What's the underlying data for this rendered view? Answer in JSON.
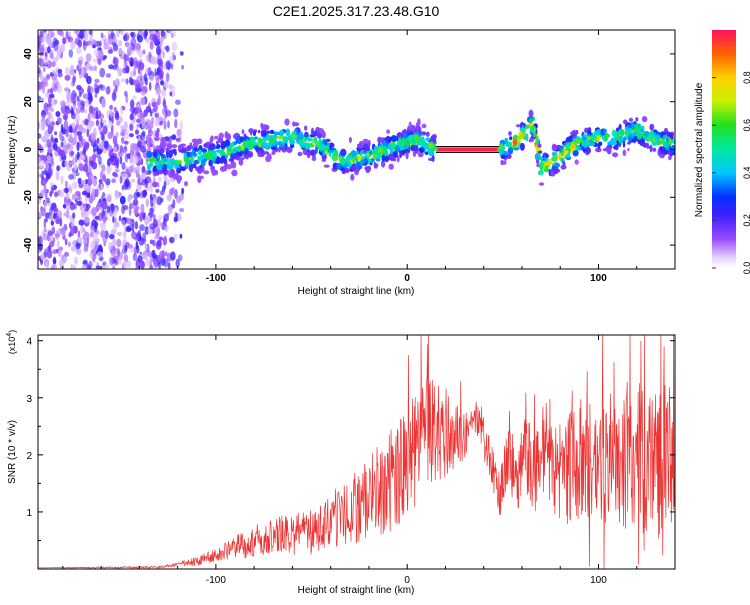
{
  "title": "C2E1.2025.317.23.48.G10",
  "chart_data": [
    {
      "type": "heatmap",
      "name": "spectrogram",
      "xlabel": "Height of straight line (km)",
      "ylabel": "Frequency (Hz)",
      "xlim": [
        -193,
        140
      ],
      "ylim": [
        -50,
        50
      ],
      "xticks": [
        -100,
        0,
        100
      ],
      "yticks": [
        -40,
        -20,
        0,
        20,
        40
      ],
      "colorbar": {
        "label": "Normalized spectral amplitude",
        "range": [
          0,
          1
        ],
        "ticks": [
          0.0,
          0.2,
          0.4,
          0.6,
          0.8
        ]
      },
      "ridge": [
        {
          "x": -120,
          "y": -5
        },
        {
          "x": -100,
          "y": -2
        },
        {
          "x": -80,
          "y": 3
        },
        {
          "x": -60,
          "y": 5
        },
        {
          "x": -45,
          "y": 2
        },
        {
          "x": -35,
          "y": -5
        },
        {
          "x": -20,
          "y": -3
        },
        {
          "x": -5,
          "y": 2
        },
        {
          "x": 5,
          "y": 4
        },
        {
          "x": 15,
          "y": 0
        },
        {
          "x": 48,
          "y": 0
        },
        {
          "x": 55,
          "y": 2
        },
        {
          "x": 62,
          "y": 7
        },
        {
          "x": 66,
          "y": 11
        },
        {
          "x": 70,
          "y": -8
        },
        {
          "x": 78,
          "y": -4
        },
        {
          "x": 90,
          "y": 3
        },
        {
          "x": 100,
          "y": 5
        },
        {
          "x": 110,
          "y": 5
        },
        {
          "x": 120,
          "y": 8
        },
        {
          "x": 130,
          "y": 4
        },
        {
          "x": 140,
          "y": 2
        }
      ],
      "tone_segment": {
        "x": [
          15,
          48
        ],
        "y": 0
      }
    },
    {
      "type": "line",
      "name": "snr",
      "xlabel": "Height of straight line (km)",
      "ylabel": "SNR (10 * v/v)",
      "yscale_label": "(x10",
      "yscale_exp": "4",
      "yscale_close": ")",
      "xlim": [
        -193,
        140
      ],
      "ylim": [
        0,
        4.1
      ],
      "xticks": [
        -100,
        0,
        100
      ],
      "yticks": [
        1,
        2,
        3,
        4
      ],
      "color": "#ee3333",
      "envelope": [
        {
          "x": -193,
          "y": 0.02
        },
        {
          "x": -130,
          "y": 0.03
        },
        {
          "x": -110,
          "y": 0.12
        },
        {
          "x": -90,
          "y": 0.35
        },
        {
          "x": -70,
          "y": 0.55
        },
        {
          "x": -50,
          "y": 0.6
        },
        {
          "x": -30,
          "y": 0.95
        },
        {
          "x": -10,
          "y": 1.4
        },
        {
          "x": 0,
          "y": 1.7
        },
        {
          "x": 10,
          "y": 2.3
        },
        {
          "x": 20,
          "y": 2.3
        },
        {
          "x": 30,
          "y": 2.3
        },
        {
          "x": 36,
          "y": 2.65
        },
        {
          "x": 44,
          "y": 1.8
        },
        {
          "x": 48,
          "y": 1.2
        },
        {
          "x": 52,
          "y": 1.9
        },
        {
          "x": 58,
          "y": 1.6
        },
        {
          "x": 62,
          "y": 2.0
        },
        {
          "x": 66,
          "y": 1.55
        },
        {
          "x": 72,
          "y": 2.1
        },
        {
          "x": 80,
          "y": 1.6
        },
        {
          "x": 90,
          "y": 1.8
        },
        {
          "x": 100,
          "y": 1.7
        },
        {
          "x": 110,
          "y": 1.9
        },
        {
          "x": 120,
          "y": 1.7
        },
        {
          "x": 130,
          "y": 1.8
        },
        {
          "x": 140,
          "y": 1.6
        }
      ],
      "noise": [
        {
          "x": -193,
          "a": 0.0
        },
        {
          "x": -125,
          "a": 0.03
        },
        {
          "x": -100,
          "a": 0.15
        },
        {
          "x": -80,
          "a": 0.35
        },
        {
          "x": -50,
          "a": 0.5
        },
        {
          "x": -20,
          "a": 0.9
        },
        {
          "x": 0,
          "a": 1.3
        },
        {
          "x": 20,
          "a": 1.1
        },
        {
          "x": 34,
          "a": 0.3
        },
        {
          "x": 45,
          "a": 0.5
        },
        {
          "x": 60,
          "a": 0.8
        },
        {
          "x": 80,
          "a": 1.2
        },
        {
          "x": 110,
          "a": 1.6
        },
        {
          "x": 140,
          "a": 1.8
        }
      ]
    }
  ]
}
